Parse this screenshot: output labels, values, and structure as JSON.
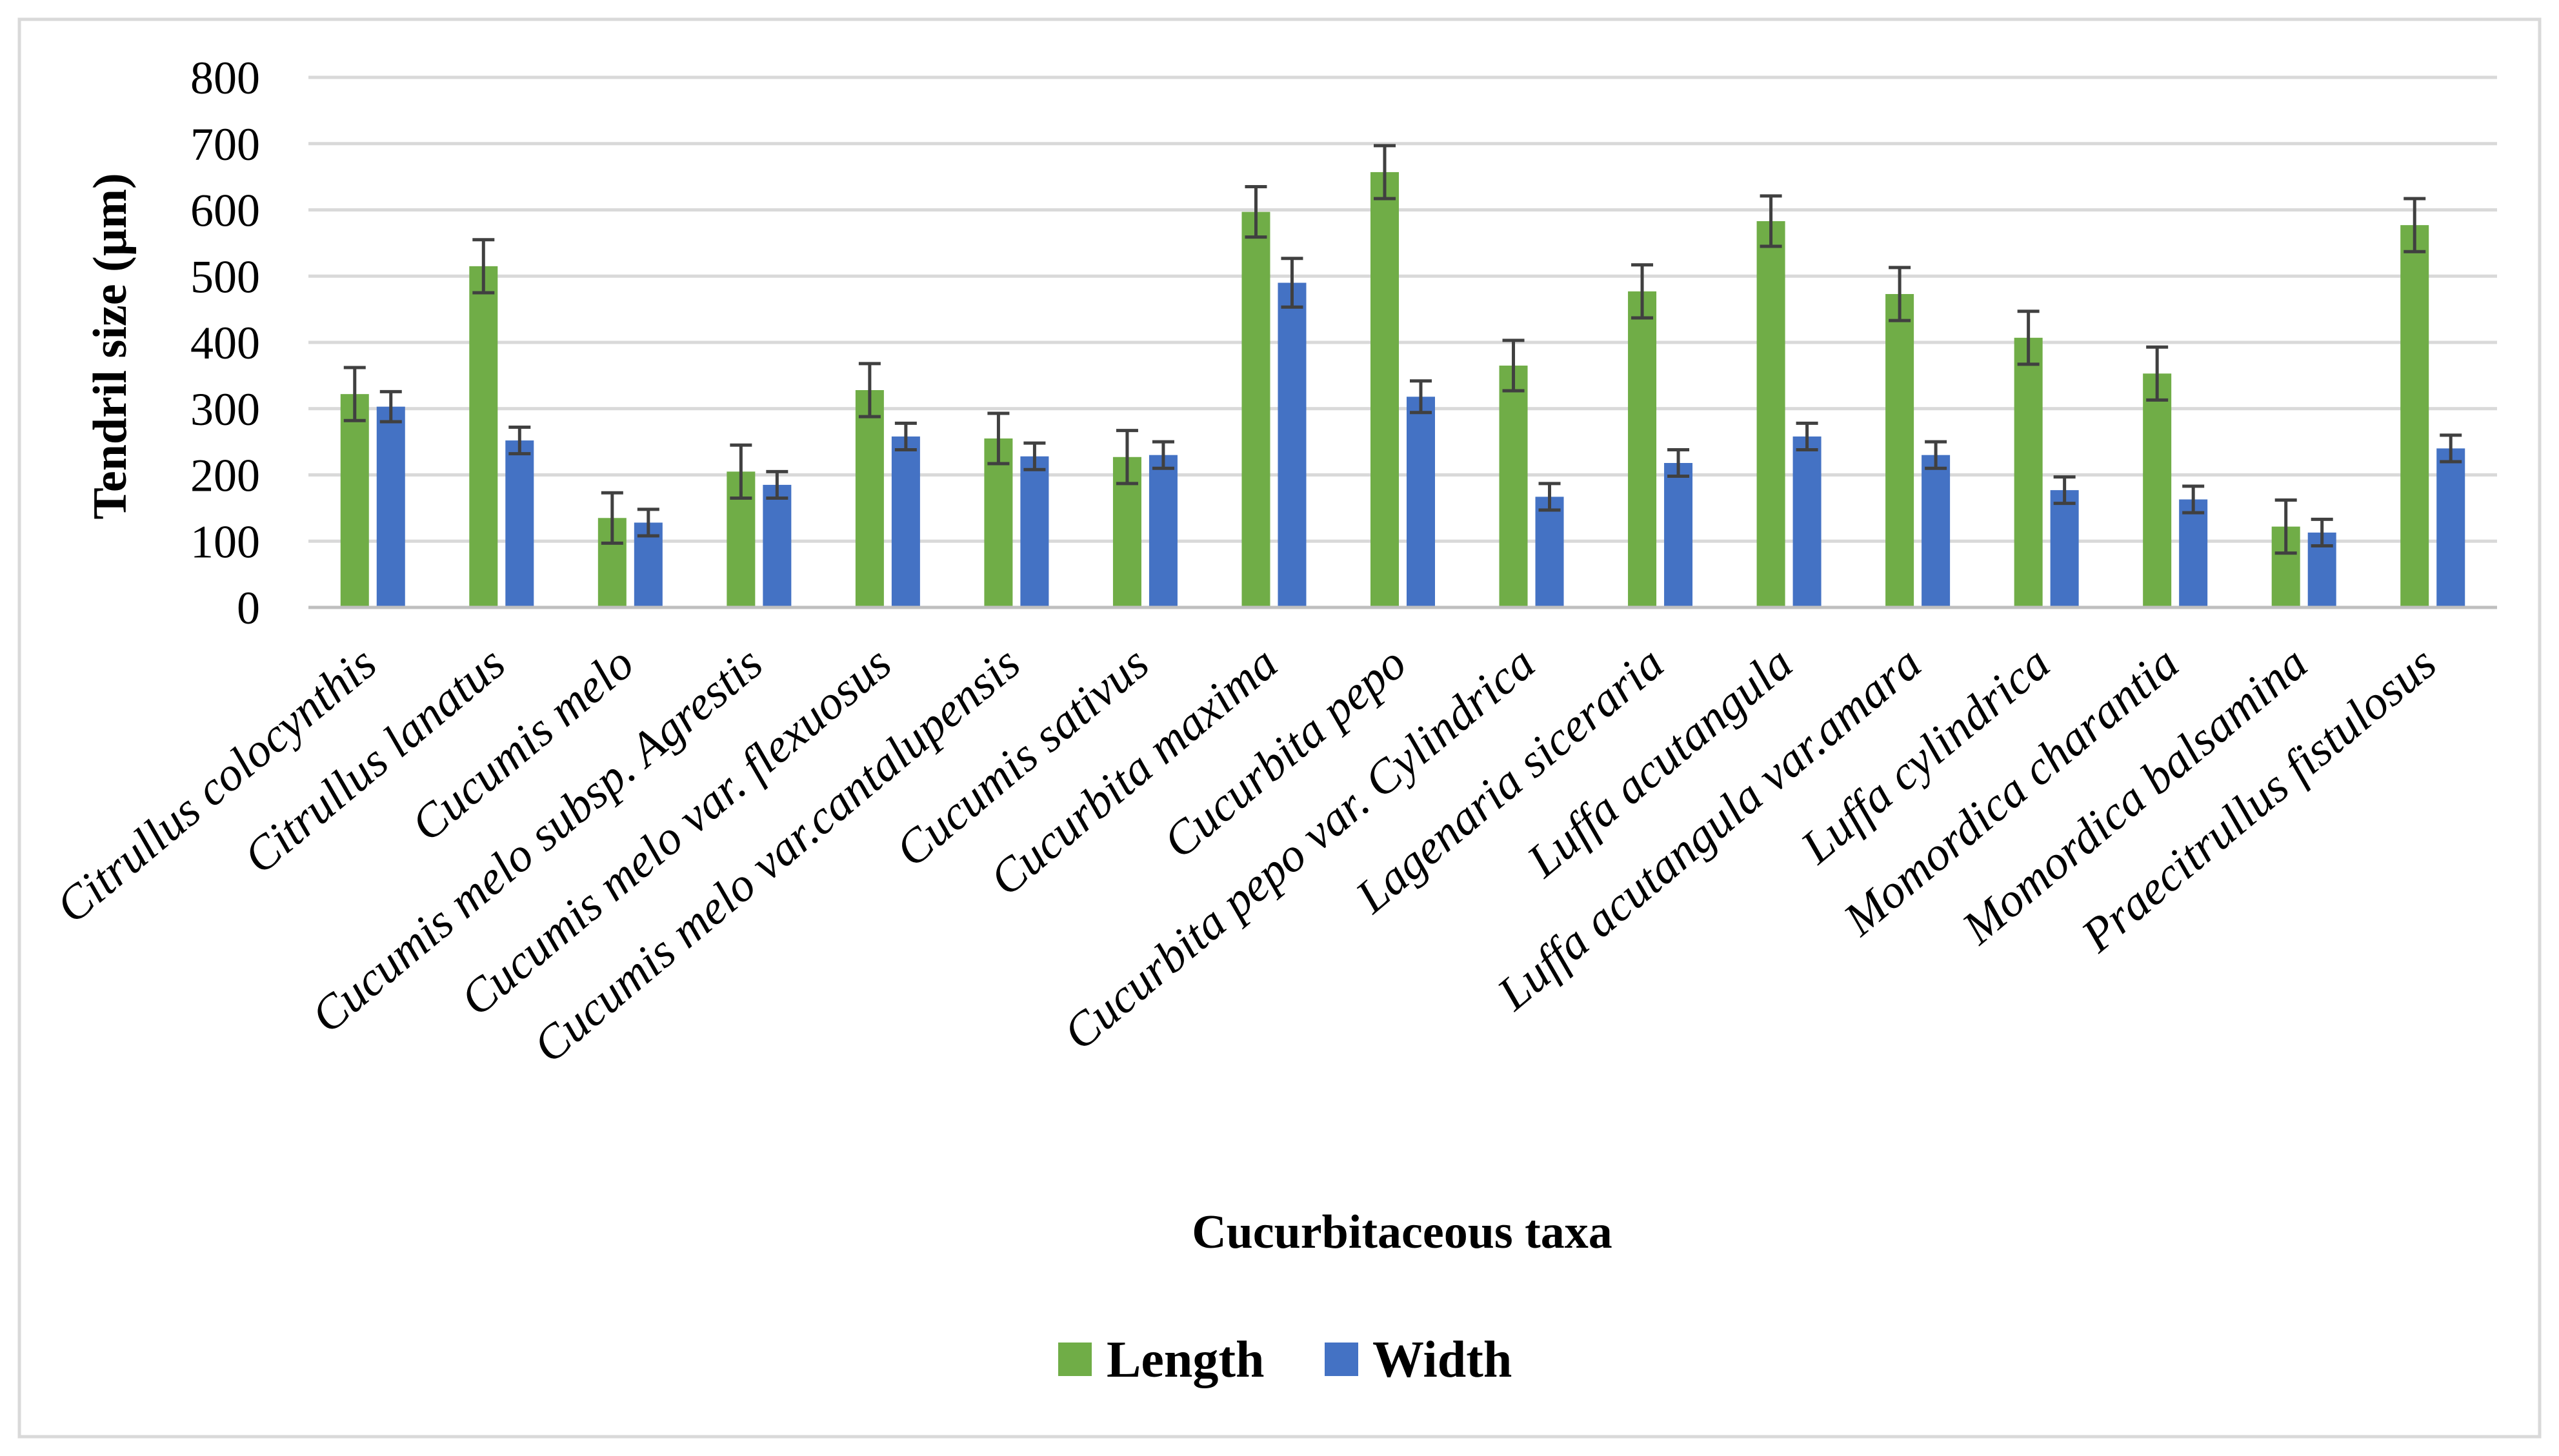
{
  "chart_data": {
    "type": "bar",
    "title": "",
    "xlabel": "Cucurbitaceous taxa",
    "ylabel": "Tendril size (µm)",
    "ylim": [
      0,
      800
    ],
    "yticks": [
      0,
      100,
      200,
      300,
      400,
      500,
      600,
      700,
      800
    ],
    "grid": true,
    "legend_position": "bottom",
    "categories": [
      "Citrullus colocynthis",
      "Citrullus lanatus",
      "Cucumis melo",
      "Cucumis melo subsp. Agrestis",
      "Cucumis melo var. flexuosus",
      "Cucumis melo var.cantalupensis",
      "Cucumis sativus",
      "Cucurbita maxima",
      "Cucurbita pepo",
      "Cucurbita pepo var. Cylindrica",
      "Lagenaria siceraria",
      "Luffa acutangula",
      "Luffa acutangula var.amara",
      "Luffa cylindrica",
      "Momordica charantia",
      "Momordica balsamina",
      "Praecitrullus fistulosus"
    ],
    "series": [
      {
        "name": "Length",
        "color": "#70ad47",
        "values": [
          322,
          515,
          135,
          205,
          328,
          255,
          227,
          597,
          657,
          365,
          477,
          583,
          473,
          407,
          353,
          122,
          577
        ],
        "errors": [
          40,
          40,
          38,
          40,
          40,
          38,
          40,
          38,
          40,
          38,
          40,
          38,
          40,
          40,
          40,
          40,
          40
        ]
      },
      {
        "name": "Width",
        "color": "#4472c4",
        "values": [
          303,
          252,
          128,
          185,
          258,
          228,
          230,
          490,
          318,
          167,
          218,
          258,
          230,
          177,
          163,
          113,
          240
        ]
      }
    ]
  }
}
